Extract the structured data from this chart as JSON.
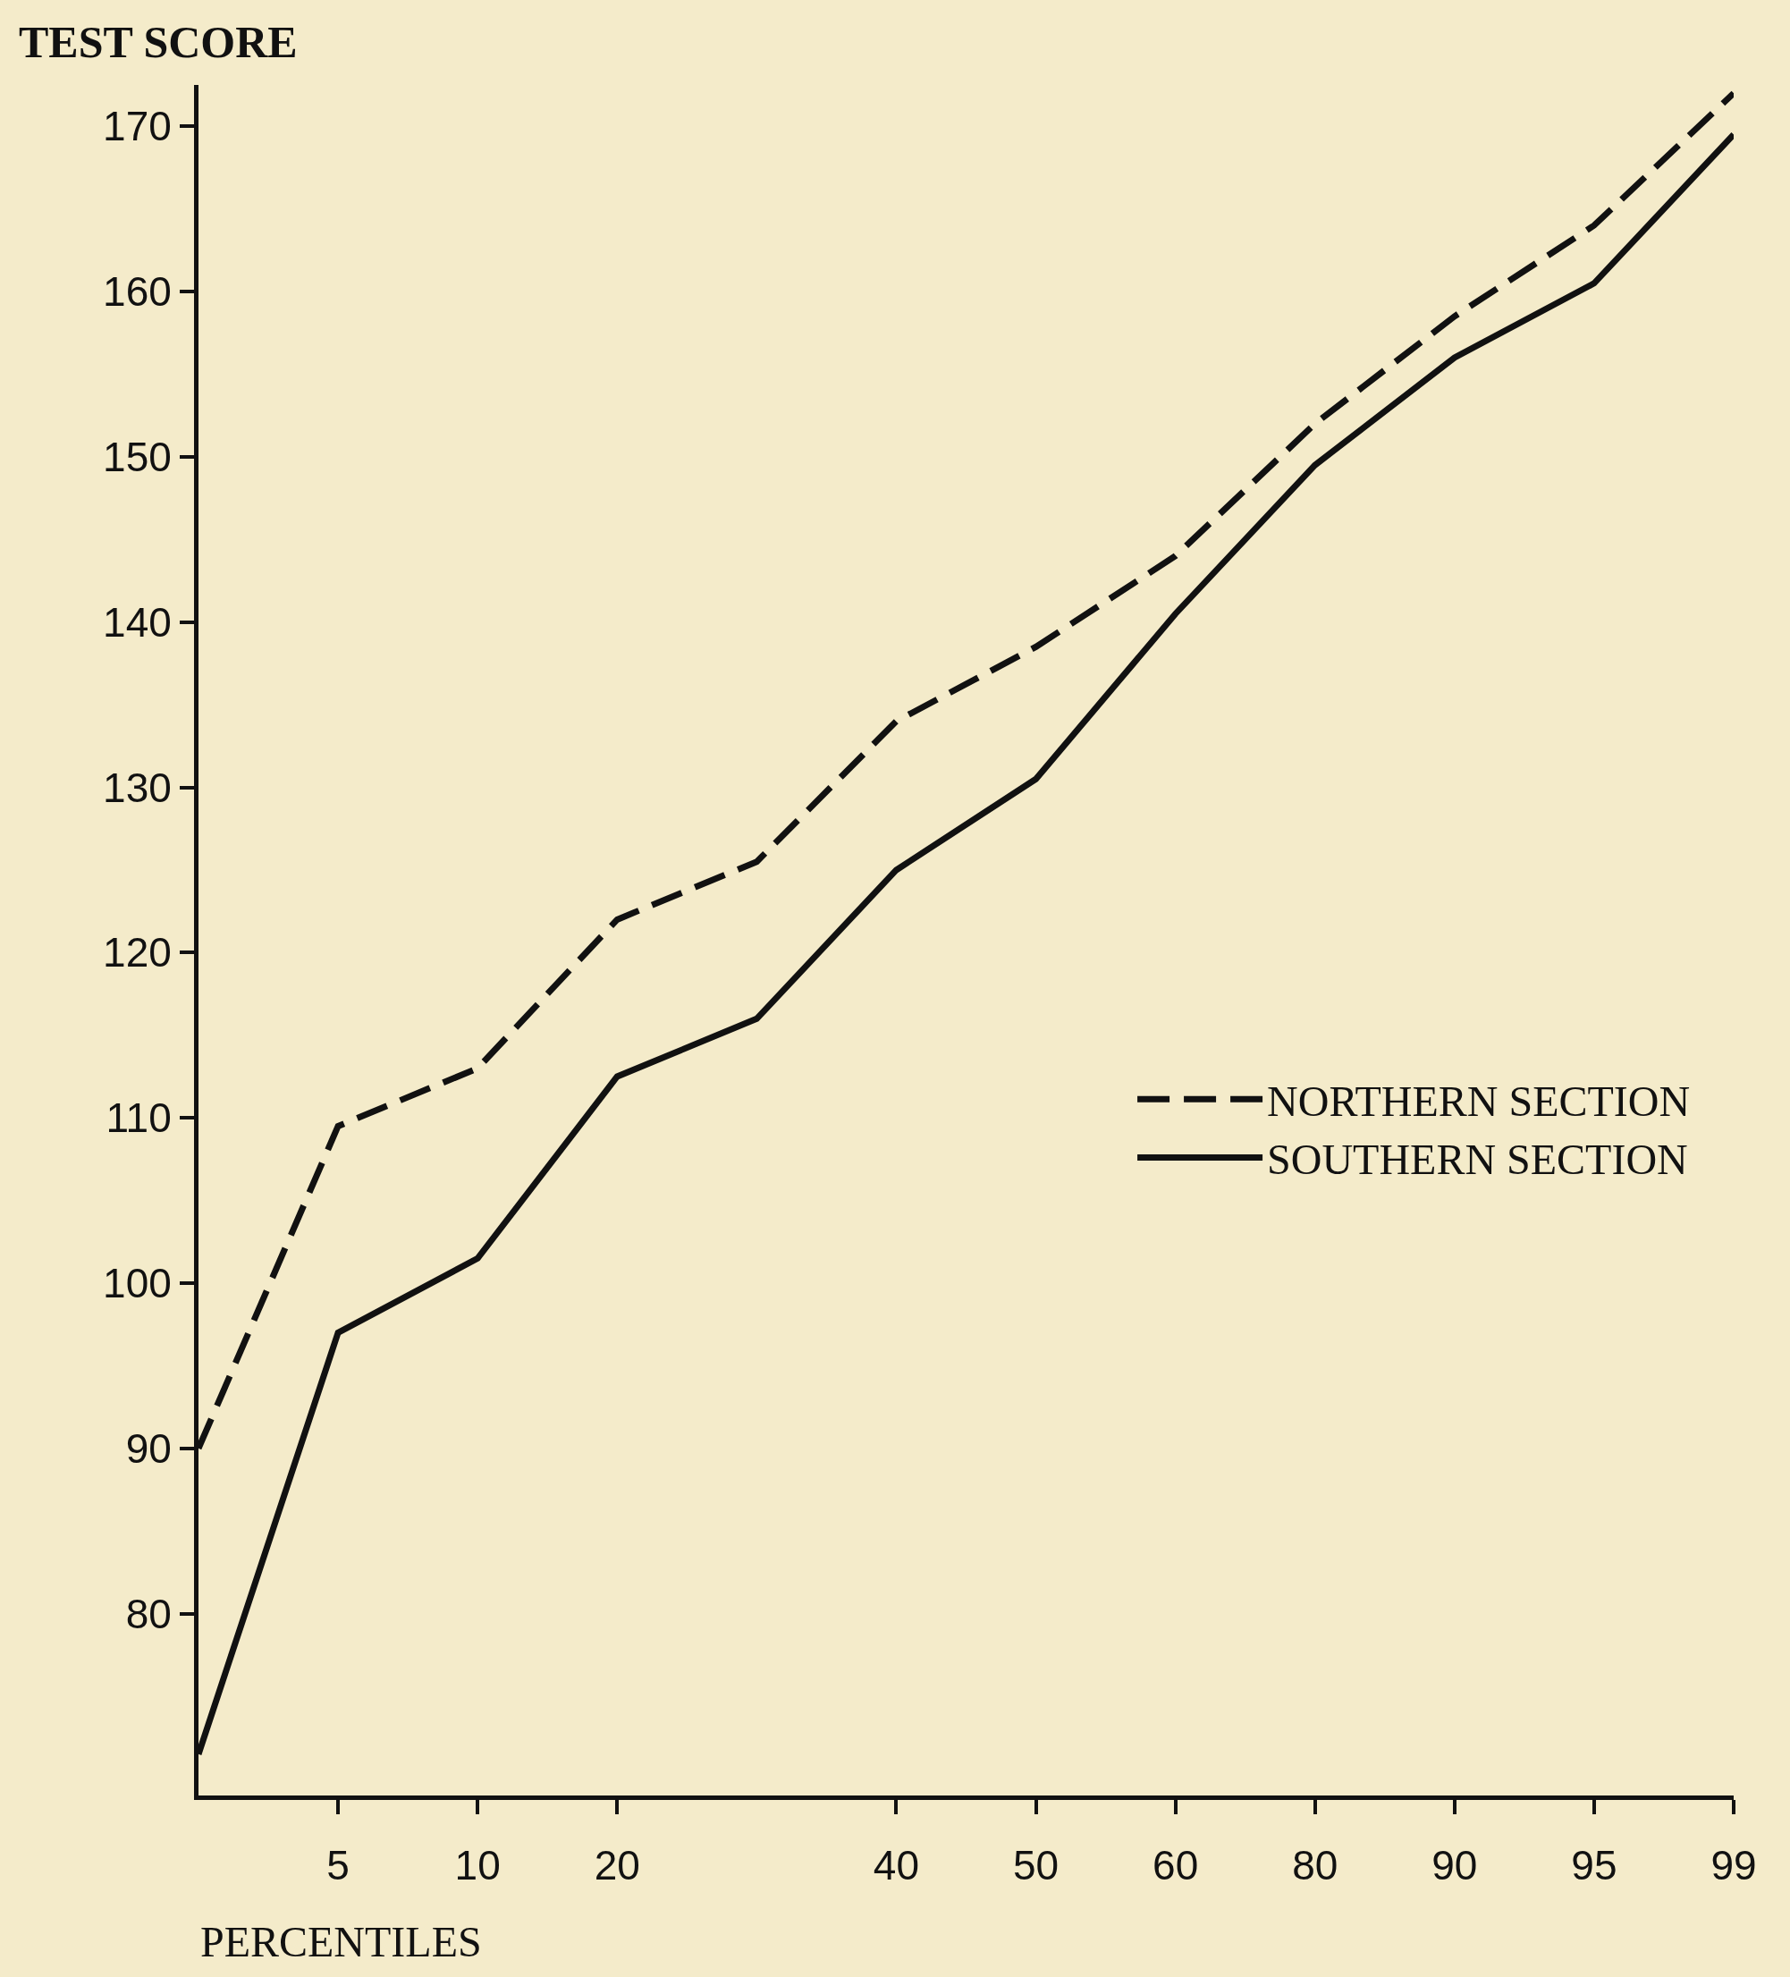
{
  "chart_data": {
    "type": "line",
    "ylabel": "TEST SCORE",
    "xlabel": "PERCENTILES",
    "categories": [
      null,
      "5",
      "10",
      "20",
      null,
      "40",
      "50",
      "60",
      "80",
      "90",
      "95",
      "99"
    ],
    "series": [
      {
        "name": "NORTHERN SECTION",
        "color": "#111111",
        "line_style": "dashed",
        "values": [
          90,
          109.5,
          113,
          122,
          125.5,
          134,
          138.5,
          144,
          152,
          158.5,
          164,
          172
        ]
      },
      {
        "name": "SOUTHERN SECTION",
        "color": "#111111",
        "line_style": "solid",
        "values": [
          71.5,
          97,
          101.5,
          112.5,
          116,
          125,
          130.5,
          140.5,
          149.5,
          156,
          160.5,
          169.5
        ]
      }
    ],
    "ylim": [
      69,
      172.5
    ],
    "yticks": [
      80,
      90,
      100,
      110,
      120,
      130,
      140,
      150,
      160,
      170
    ],
    "legend": "right"
  }
}
